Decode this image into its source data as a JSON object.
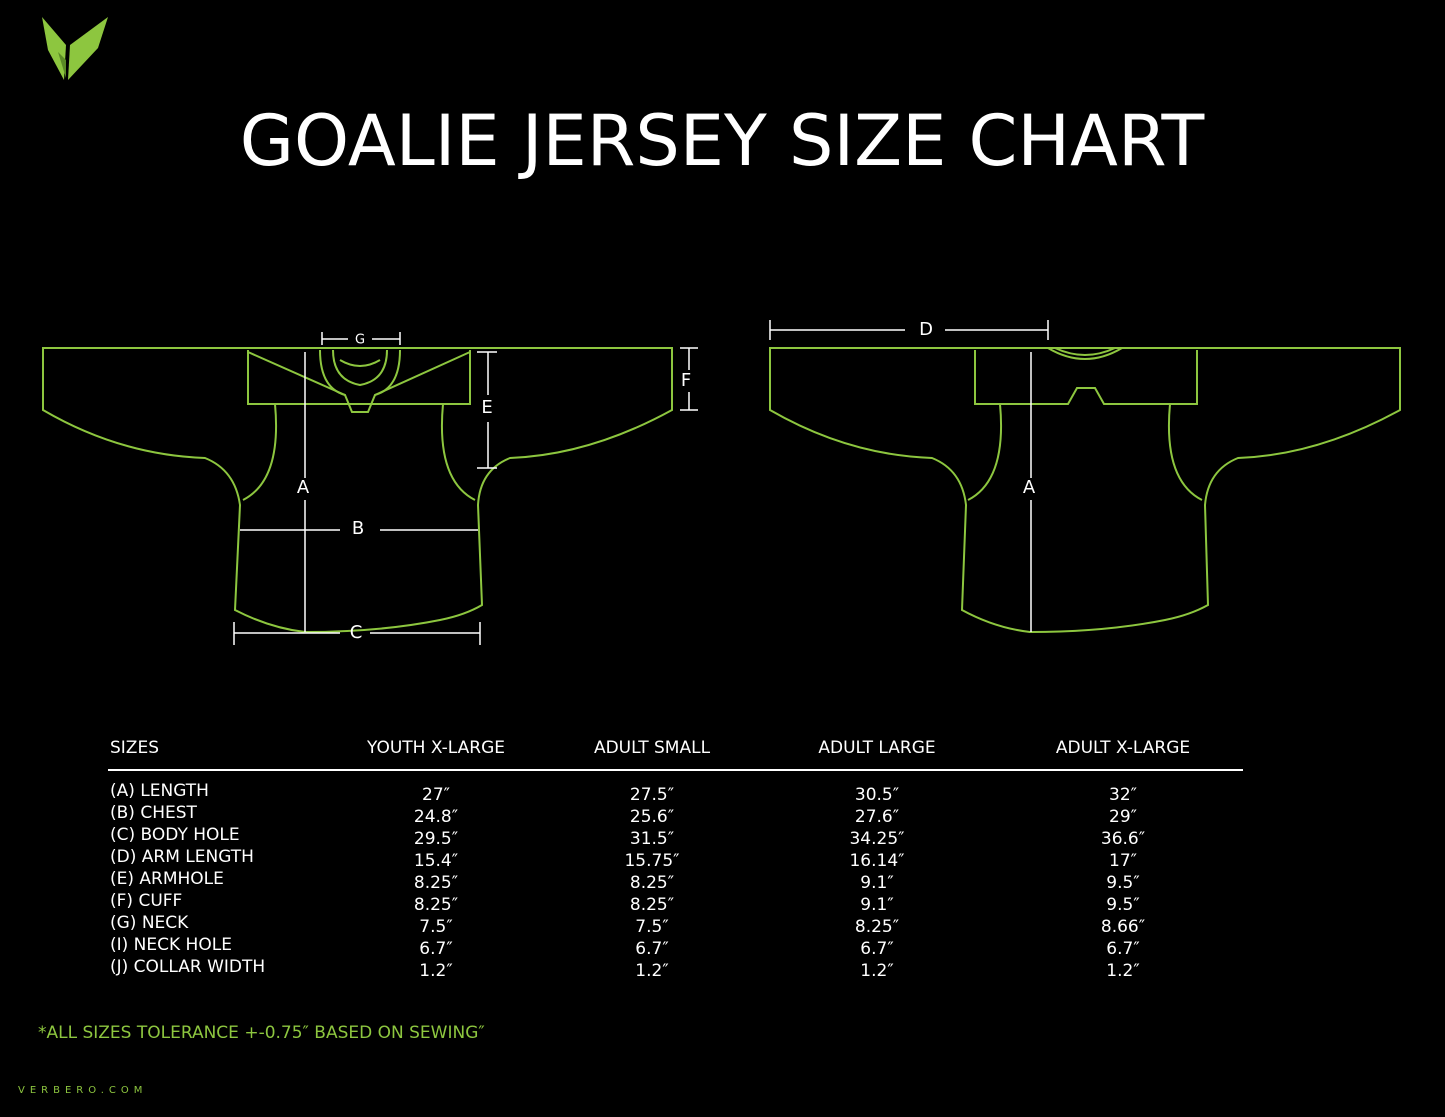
{
  "title": "GOALIE JERSEY SIZE CHART",
  "front_labels": {
    "g": "G",
    "e": "E",
    "f": "F",
    "a": "A",
    "b": "B",
    "c": "C"
  },
  "back_labels": {
    "d": "D",
    "a": "A"
  },
  "table": {
    "header": [
      "SIZES",
      "YOUTH X-LARGE",
      "ADULT SMALL",
      "ADULT LARGE",
      "ADULT X-LARGE"
    ],
    "rows": [
      [
        "(A) LENGTH",
        "27″",
        "27.5″",
        "30.5″",
        "32″"
      ],
      [
        "(B) CHEST",
        "24.8″",
        "25.6″",
        "27.6″",
        "29″"
      ],
      [
        "(C) BODY HOLE",
        "29.5″",
        "31.5″",
        "34.25″",
        "36.6″"
      ],
      [
        "(D) ARM LENGTH",
        "15.4″",
        "15.75″",
        "16.14″",
        "17″"
      ],
      [
        "(E) ARMHOLE",
        "8.25″",
        "8.25″",
        "9.1″",
        "9.5″"
      ],
      [
        "(F) CUFF",
        "8.25″",
        "8.25″",
        "9.1″",
        "9.5″"
      ],
      [
        "(G) NECK",
        "7.5″",
        "7.5″",
        "8.25″",
        "8.66″"
      ],
      [
        "(I) NECK HOLE",
        "6.7″",
        "6.7″",
        "6.7″",
        "6.7″"
      ],
      [
        "(J) COLLAR WIDTH",
        "1.2″",
        "1.2″",
        "1.2″",
        "1.2″"
      ]
    ]
  },
  "note": "*ALL SIZES TOLERANCE +-0.75″ BASED ON SEWING″",
  "footer": "VERBERO.COM"
}
